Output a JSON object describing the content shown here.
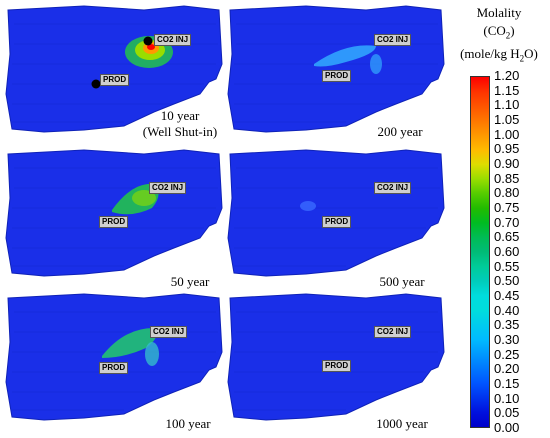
{
  "panels": [
    {
      "id": "p10",
      "caption_line1": "10 year",
      "caption_line2": "(Well Shut-in)",
      "plume": "strong",
      "markers": true
    },
    {
      "id": "p200",
      "caption_line1": "200 year",
      "caption_line2": "",
      "plume": "faint-spread",
      "markers": false
    },
    {
      "id": "p50",
      "caption_line1": "50 year",
      "caption_line2": "",
      "plume": "medium",
      "markers": false
    },
    {
      "id": "p500",
      "caption_line1": "500 year",
      "caption_line2": "",
      "plume": "trace",
      "markers": false
    },
    {
      "id": "p100",
      "caption_line1": "100 year",
      "caption_line2": "",
      "plume": "medium-spread",
      "markers": false
    },
    {
      "id": "p1000",
      "caption_line1": "1000 year",
      "caption_line2": "",
      "plume": "none",
      "markers": false
    }
  ],
  "wells": {
    "injector": "CO2 INJ",
    "producer": "PROD"
  },
  "legend": {
    "title_line1": "Molality",
    "title_line2": "(CO",
    "title_line2_sub": "2",
    "title_line2_end": ")",
    "title_line3": "(mole/kg H",
    "title_line3_sub": "2",
    "title_line3_end": "O)",
    "ticks": [
      "1.20",
      "1.15",
      "1.10",
      "1.05",
      "1.00",
      "0.95",
      "0.90",
      "0.85",
      "0.80",
      "0.75",
      "0.70",
      "0.65",
      "0.60",
      "0.55",
      "0.50",
      "0.45",
      "0.40",
      "0.35",
      "0.30",
      "0.25",
      "0.20",
      "0.15",
      "0.10",
      "0.05",
      "0.00"
    ],
    "colors": [
      "#ff0000",
      "#ff3300",
      "#ff5500",
      "#ff7700",
      "#ff9900",
      "#ffbb00",
      "#dddd00",
      "#99dd00",
      "#55cc00",
      "#22bb00",
      "#00bb22",
      "#00bb55",
      "#00bb77",
      "#00cc99",
      "#00ccbb",
      "#00dddd",
      "#00dddd",
      "#00ccee",
      "#00bbff",
      "#0099ff",
      "#0077ff",
      "#0055ff",
      "#0033ee",
      "#0011dd",
      "#0000cc"
    ]
  },
  "colors": {
    "background_field": "#1a2fe8",
    "grid": "#0f22b8"
  }
}
